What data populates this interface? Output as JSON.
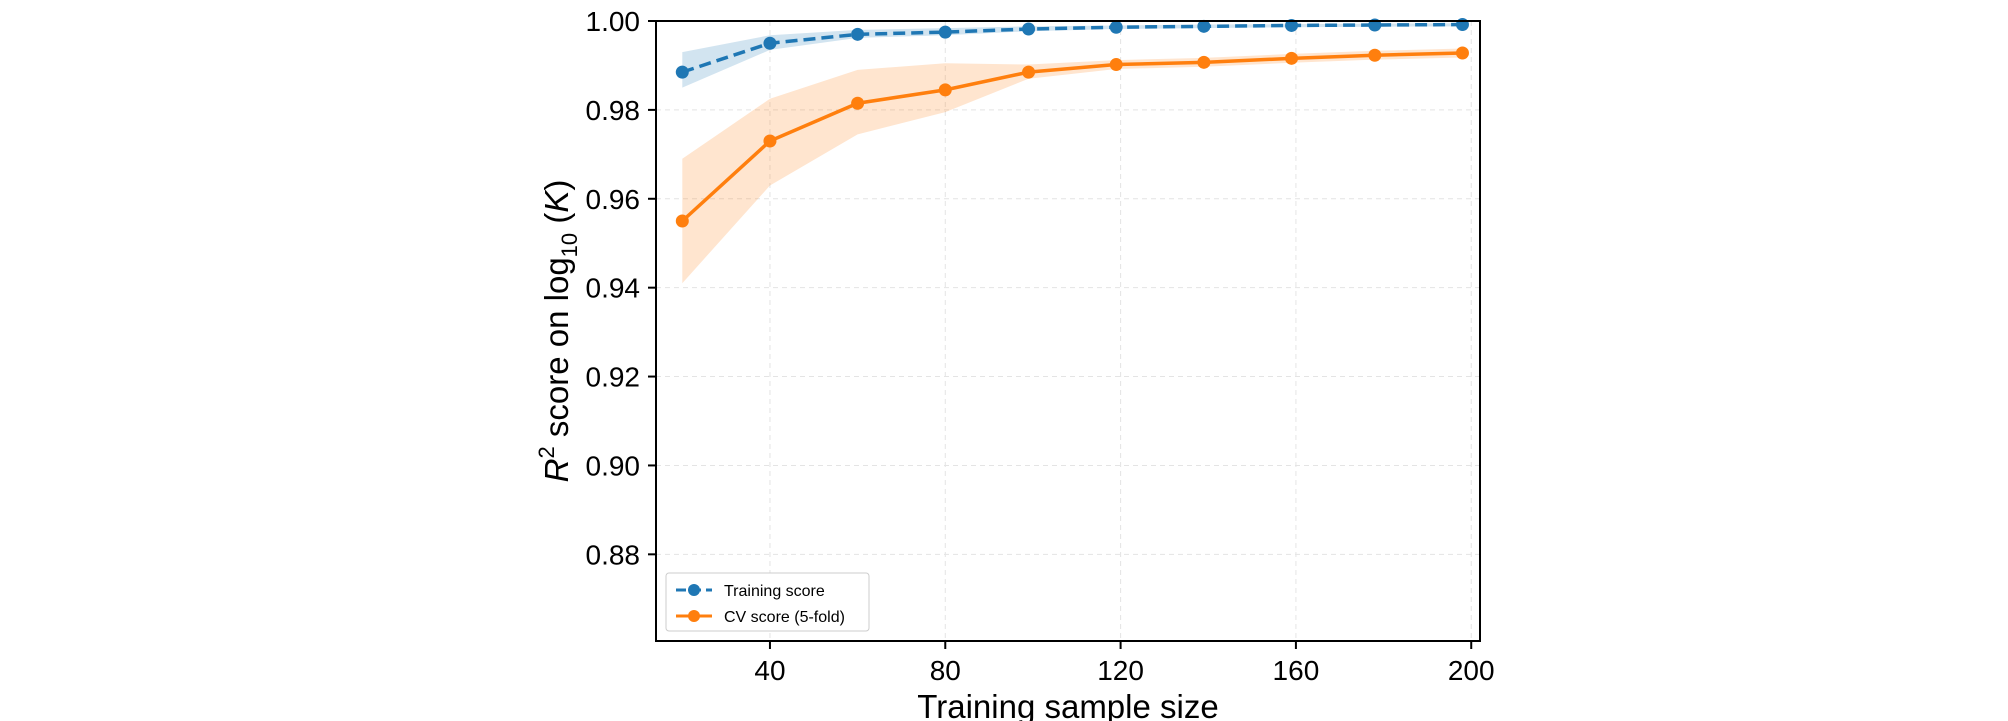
{
  "chart_data": {
    "type": "line",
    "title": "",
    "xlabel": "Training sample size",
    "ylabel_prefix": "R",
    "ylabel_sup": "2",
    "ylabel_mid": " score on log",
    "ylabel_sub": "10",
    "ylabel_open": " (",
    "ylabel_var": "K",
    "ylabel_close": ")",
    "xlim": [
      14,
      202
    ],
    "ylim": [
      0.8605,
      1.0
    ],
    "xticks": [
      40,
      80,
      120,
      160,
      200
    ],
    "xtick_labels": [
      "40",
      "80",
      "120",
      "160",
      "200"
    ],
    "yticks": [
      0.88,
      0.9,
      0.92,
      0.94,
      0.96,
      0.98,
      1.0
    ],
    "ytick_labels": [
      "0.88",
      "0.90",
      "0.92",
      "0.94",
      "0.96",
      "0.98",
      "1.00"
    ],
    "grid": true,
    "legend_position": "lower-left",
    "x": [
      20,
      40,
      60,
      80,
      99,
      119,
      139,
      159,
      178,
      198
    ],
    "series": [
      {
        "name": "Training score",
        "color": "#1f77b4",
        "linestyle": "dashed",
        "values": [
          0.9885,
          0.995,
          0.997,
          0.9975,
          0.9982,
          0.9986,
          0.9988,
          0.999,
          0.9991,
          0.9992
        ],
        "band_lower": [
          0.985,
          0.9935,
          0.9962,
          0.9968,
          0.9977,
          0.9982,
          0.9984,
          0.9986,
          0.9987,
          0.9988
        ],
        "band_upper": [
          0.993,
          0.9968,
          0.998,
          0.9984,
          0.9988,
          0.999,
          0.9992,
          0.9993,
          0.9994,
          0.9995
        ]
      },
      {
        "name": "CV score (5-fold)",
        "color": "#ff7f0e",
        "linestyle": "solid",
        "values": [
          0.955,
          0.973,
          0.9815,
          0.9845,
          0.9885,
          0.9902,
          0.9907,
          0.9916,
          0.9923,
          0.9928
        ],
        "band_lower": [
          0.941,
          0.963,
          0.9745,
          0.9795,
          0.987,
          0.9892,
          0.9897,
          0.9906,
          0.9913,
          0.9918
        ],
        "band_upper": [
          0.969,
          0.9825,
          0.989,
          0.9905,
          0.9902,
          0.9912,
          0.9917,
          0.9926,
          0.9933,
          0.9938
        ]
      }
    ]
  }
}
